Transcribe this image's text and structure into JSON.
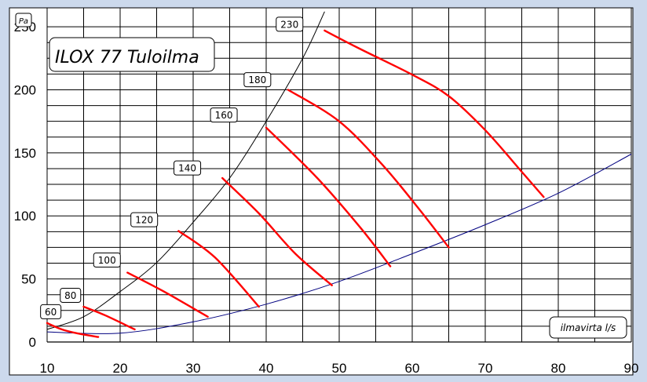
{
  "chart_data": {
    "type": "line",
    "title": "ILOX 77 Tuloilma",
    "xlabel": "ilmavirta l/s",
    "ylabel": "Pa",
    "xlim": [
      10,
      90
    ],
    "ylim": [
      0,
      265
    ],
    "x_ticks": [
      10,
      20,
      30,
      40,
      50,
      60,
      70,
      80,
      90
    ],
    "y_ticks": [
      0,
      50,
      100,
      150,
      200,
      250
    ],
    "grid": true,
    "colors": {
      "curves": "#ff0000",
      "upper_limit": "#000000",
      "lower_limit": "#000080",
      "grid": "#000000"
    },
    "series": [
      {
        "name": "60",
        "points": [
          [
            10,
            15
          ],
          [
            12,
            10
          ],
          [
            14,
            7
          ],
          [
            17,
            4
          ]
        ]
      },
      {
        "name": "80",
        "points": [
          [
            15,
            28
          ],
          [
            18,
            21
          ],
          [
            22,
            10
          ]
        ]
      },
      {
        "name": "100",
        "points": [
          [
            21,
            55
          ],
          [
            26,
            40
          ],
          [
            32,
            20
          ]
        ]
      },
      {
        "name": "120",
        "points": [
          [
            28,
            88
          ],
          [
            33,
            67
          ],
          [
            39,
            28
          ]
        ]
      },
      {
        "name": "140",
        "points": [
          [
            34,
            130
          ],
          [
            39,
            102
          ],
          [
            44,
            70
          ],
          [
            49,
            45
          ]
        ]
      },
      {
        "name": "160",
        "points": [
          [
            40,
            170
          ],
          [
            47,
            130
          ],
          [
            53,
            90
          ],
          [
            57,
            60
          ]
        ]
      },
      {
        "name": "180",
        "points": [
          [
            43,
            200
          ],
          [
            50,
            175
          ],
          [
            56,
            140
          ],
          [
            61,
            105
          ],
          [
            65,
            75
          ]
        ]
      },
      {
        "name": "230",
        "points": [
          [
            48,
            247
          ],
          [
            53,
            232
          ],
          [
            60,
            212
          ],
          [
            65,
            195
          ],
          [
            70,
            168
          ],
          [
            75,
            135
          ],
          [
            78,
            115
          ]
        ]
      }
    ],
    "limit_curves": {
      "upper": {
        "points": [
          [
            10,
            10
          ],
          [
            15,
            20
          ],
          [
            20,
            40
          ],
          [
            25,
            63
          ],
          [
            30,
            95
          ],
          [
            35,
            130
          ],
          [
            40,
            175
          ],
          [
            45,
            225
          ],
          [
            48,
            262
          ]
        ]
      },
      "lower": {
        "points": [
          [
            10,
            8
          ],
          [
            20,
            7
          ],
          [
            30,
            16
          ],
          [
            40,
            30
          ],
          [
            50,
            48
          ],
          [
            60,
            70
          ],
          [
            70,
            93
          ],
          [
            80,
            118
          ],
          [
            90,
            149
          ]
        ]
      }
    },
    "labels": [
      {
        "text": "60",
        "x": 10.5,
        "y": 24
      },
      {
        "text": "80",
        "x": 13.2,
        "y": 37
      },
      {
        "text": "100",
        "x": 18.2,
        "y": 65
      },
      {
        "text": "120",
        "x": 23.3,
        "y": 97
      },
      {
        "text": "140",
        "x": 29.2,
        "y": 138
      },
      {
        "text": "160",
        "x": 34.2,
        "y": 180
      },
      {
        "text": "180",
        "x": 38.8,
        "y": 208
      },
      {
        "text": "230",
        "x": 43.2,
        "y": 252
      }
    ]
  }
}
